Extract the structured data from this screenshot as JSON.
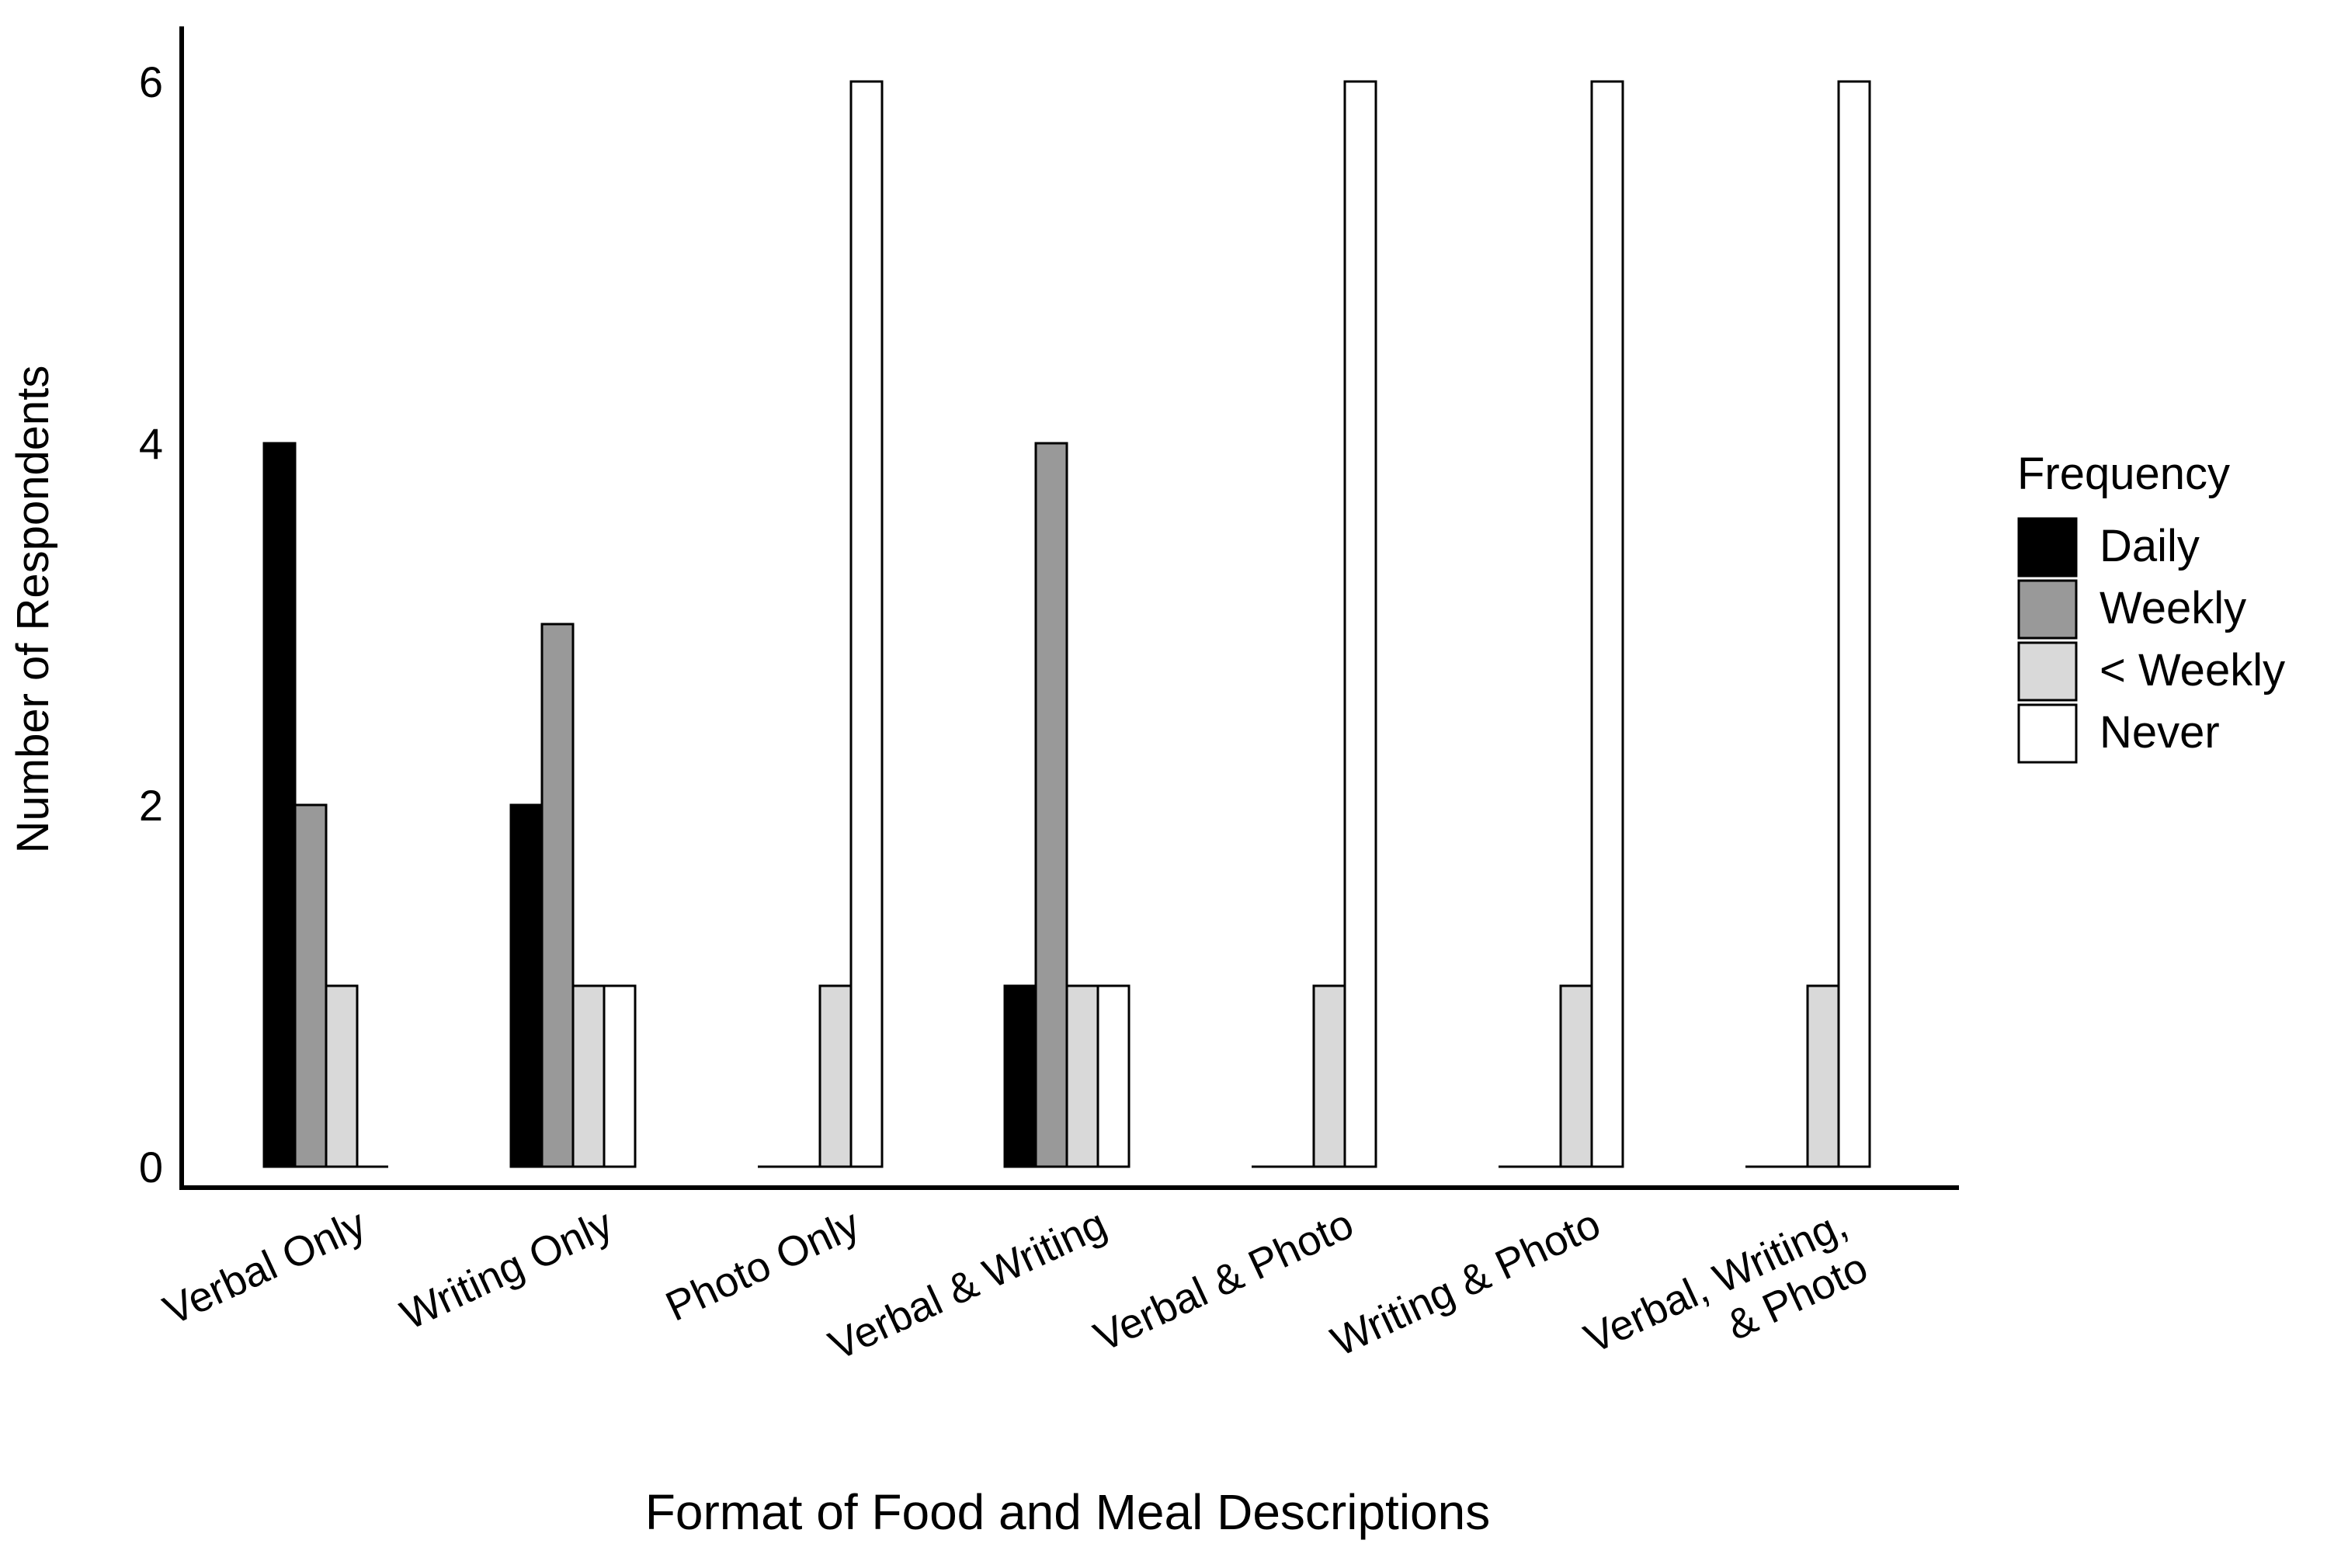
{
  "chart_data": {
    "type": "bar",
    "title": "",
    "xlabel": "Format of Food and Meal Descriptions",
    "ylabel": "Number of Respondents",
    "ylim": [
      0,
      6
    ],
    "yticks": [
      "0",
      "2",
      "4",
      "6"
    ],
    "categories": [
      [
        "Verbal Only"
      ],
      [
        "Writing Only"
      ],
      [
        "Photo Only"
      ],
      [
        "Verbal & Writing"
      ],
      [
        "Verbal & Photo"
      ],
      [
        "Writing & Photo"
      ],
      [
        "Verbal, Writing,",
        "& Photo"
      ]
    ],
    "legend_title": "Frequency",
    "legend_position": "right",
    "series": [
      {
        "name": "Daily",
        "color": "#000000",
        "values": [
          4,
          2,
          0,
          1,
          0,
          0,
          0
        ]
      },
      {
        "name": "Weekly",
        "color": "#999999",
        "values": [
          2,
          3,
          0,
          4,
          0,
          0,
          0
        ]
      },
      {
        "name": "< Weekly",
        "color": "#d9d9d9",
        "values": [
          1,
          1,
          1,
          1,
          1,
          1,
          1
        ]
      },
      {
        "name": "Never",
        "color": "#ffffff",
        "values": [
          0,
          1,
          6,
          1,
          6,
          6,
          6
        ]
      }
    ],
    "grid": false
  }
}
